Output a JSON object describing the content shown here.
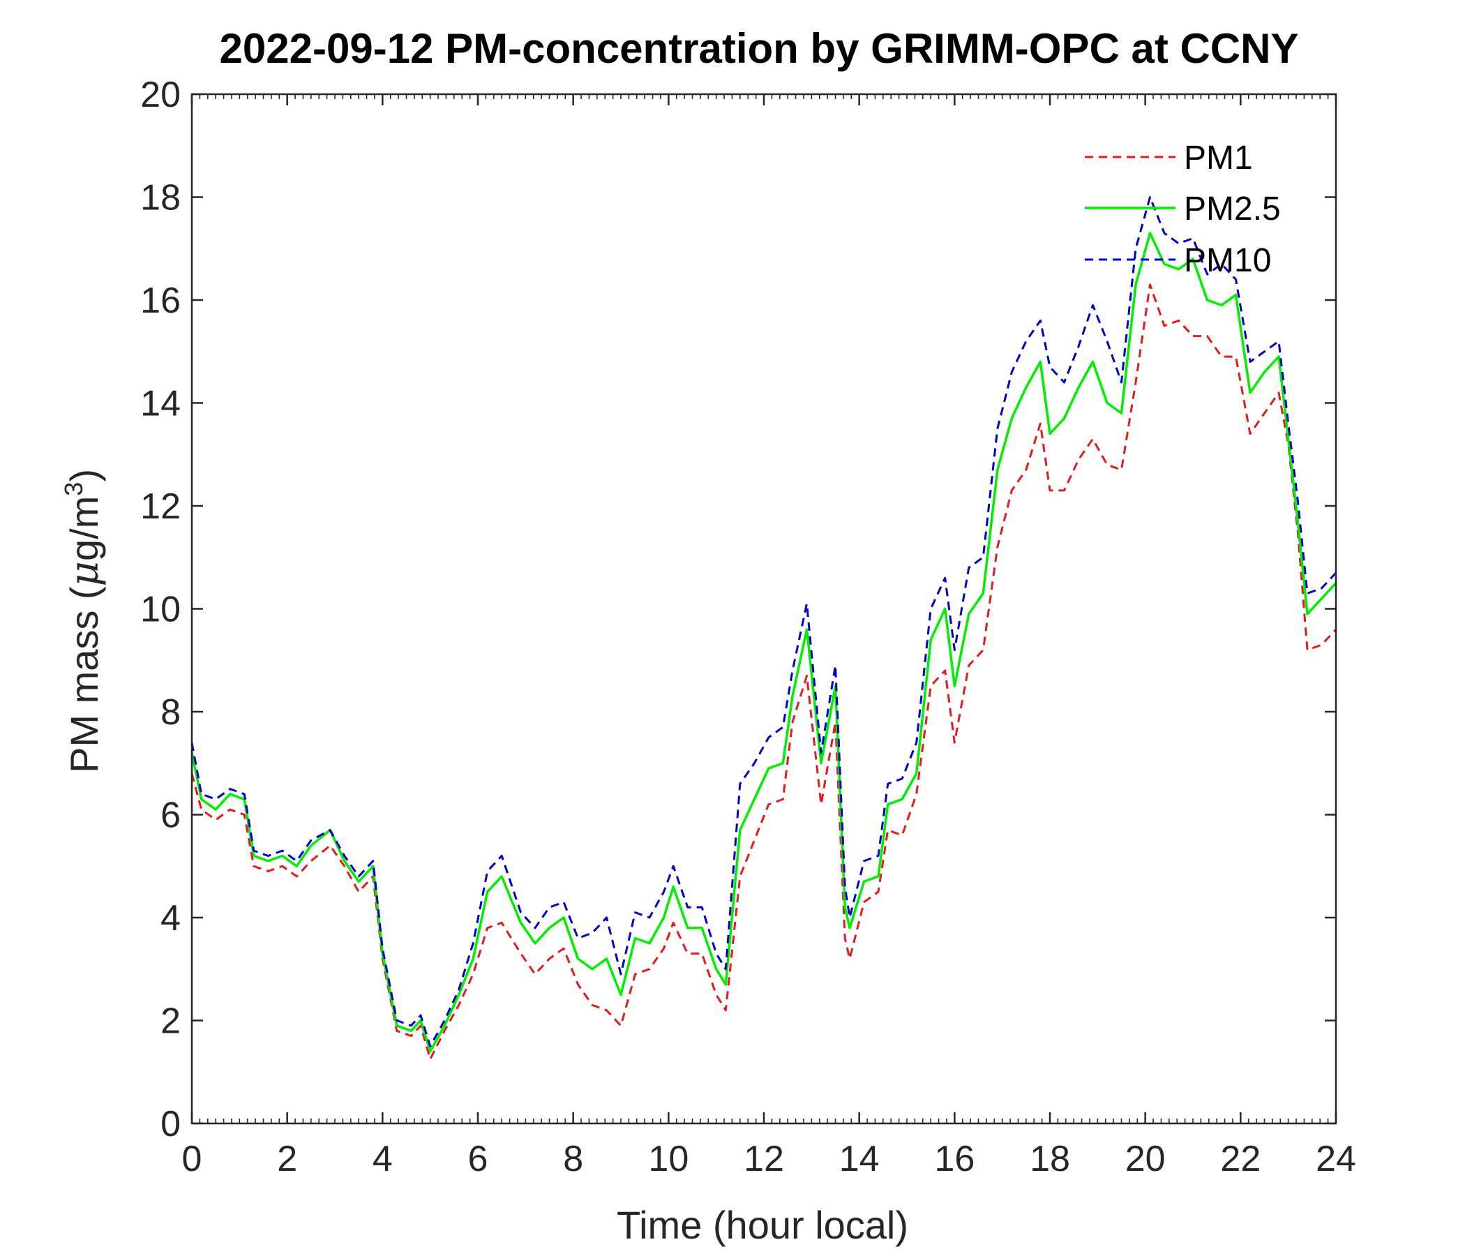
{
  "chart_data": {
    "type": "line",
    "title": "2022-09-12 PM-concentration by GRIMM-OPC at CCNY",
    "xlabel": "Time (hour local)",
    "ylabel_main": "PM mass (",
    "ylabel_mu": "μ",
    "ylabel_unit": "g/m",
    "ylabel_sup": "3",
    "ylabel_close": ")",
    "xlim": [
      0,
      24
    ],
    "ylim": [
      0,
      20
    ],
    "xticks": [
      0,
      2,
      4,
      6,
      8,
      10,
      12,
      14,
      16,
      18,
      20,
      22,
      24
    ],
    "yticks": [
      0,
      2,
      4,
      6,
      8,
      10,
      12,
      14,
      16,
      18,
      20
    ],
    "xtick_labels": [
      "0",
      "2",
      "4",
      "6",
      "8",
      "10",
      "12",
      "14",
      "16",
      "18",
      "20",
      "22",
      "24"
    ],
    "ytick_labels": [
      "0",
      "2",
      "4",
      "6",
      "8",
      "10",
      "12",
      "14",
      "16",
      "18",
      "20"
    ],
    "grid": false,
    "legend_position": "top-right",
    "x": [
      0,
      0.2,
      0.5,
      0.8,
      1.1,
      1.3,
      1.6,
      1.9,
      2.2,
      2.5,
      2.9,
      3.2,
      3.5,
      3.8,
      4.0,
      4.3,
      4.6,
      4.8,
      5.0,
      5.3,
      5.6,
      5.9,
      6.2,
      6.5,
      6.9,
      7.2,
      7.5,
      7.8,
      8.1,
      8.4,
      8.7,
      9.0,
      9.3,
      9.6,
      9.9,
      10.1,
      10.4,
      10.7,
      11.0,
      11.2,
      11.5,
      11.8,
      12.1,
      12.4,
      12.6,
      12.9,
      13.2,
      13.5,
      13.7,
      13.8,
      14.1,
      14.4,
      14.6,
      14.9,
      15.2,
      15.5,
      15.8,
      16.0,
      16.3,
      16.6,
      16.9,
      17.2,
      17.5,
      17.8,
      18.0,
      18.3,
      18.6,
      18.9,
      19.2,
      19.5,
      19.8,
      20.1,
      20.4,
      20.7,
      21.0,
      21.3,
      21.6,
      21.9,
      22.2,
      22.5,
      22.8,
      23.0,
      23.2,
      23.4,
      23.7,
      24.0
    ],
    "series": [
      {
        "name": "PM1",
        "color": "#e41a1c",
        "style": "dashed",
        "values": [
          6.8,
          6.1,
          5.9,
          6.1,
          6.0,
          5.0,
          4.9,
          5.0,
          4.8,
          5.1,
          5.4,
          5.0,
          4.5,
          4.8,
          3.2,
          1.8,
          1.7,
          1.9,
          1.25,
          1.8,
          2.3,
          2.9,
          3.8,
          3.9,
          3.3,
          2.9,
          3.2,
          3.4,
          2.7,
          2.3,
          2.2,
          1.9,
          2.9,
          3.0,
          3.4,
          3.9,
          3.3,
          3.3,
          2.5,
          2.2,
          4.8,
          5.5,
          6.2,
          6.3,
          7.8,
          8.7,
          6.2,
          7.8,
          3.6,
          3.2,
          4.3,
          4.5,
          5.7,
          5.6,
          6.4,
          8.5,
          8.8,
          7.4,
          8.9,
          9.2,
          11.2,
          12.3,
          12.7,
          13.6,
          12.3,
          12.3,
          12.9,
          13.3,
          12.8,
          12.7,
          14.4,
          16.3,
          15.5,
          15.6,
          15.3,
          15.3,
          14.9,
          14.9,
          13.4,
          13.8,
          14.2,
          13.2,
          11.5,
          9.2,
          9.3,
          9.6
        ]
      },
      {
        "name": "PM2.5",
        "color": "#00ee00",
        "style": "solid",
        "values": [
          7.2,
          6.3,
          6.1,
          6.4,
          6.3,
          5.2,
          5.1,
          5.2,
          5.0,
          5.4,
          5.7,
          5.1,
          4.7,
          5.0,
          3.3,
          1.9,
          1.8,
          2.0,
          1.4,
          1.9,
          2.5,
          3.2,
          4.5,
          4.8,
          3.9,
          3.5,
          3.8,
          4.0,
          3.2,
          3.0,
          3.2,
          2.5,
          3.6,
          3.5,
          4.0,
          4.6,
          3.8,
          3.8,
          3.0,
          2.7,
          5.7,
          6.3,
          6.9,
          7.0,
          8.3,
          9.6,
          7.0,
          8.5,
          4.2,
          3.8,
          4.7,
          4.8,
          6.2,
          6.3,
          6.8,
          9.4,
          10.0,
          8.5,
          9.9,
          10.3,
          12.7,
          13.7,
          14.3,
          14.8,
          13.4,
          13.7,
          14.3,
          14.8,
          14.0,
          13.8,
          16.3,
          17.3,
          16.7,
          16.6,
          16.8,
          16.0,
          15.9,
          16.1,
          14.2,
          14.6,
          14.9,
          13.3,
          11.7,
          9.9,
          10.2,
          10.5
        ]
      },
      {
        "name": "PM10",
        "color": "#0000cd",
        "style": "dashed",
        "values": [
          7.4,
          6.4,
          6.3,
          6.5,
          6.4,
          5.3,
          5.2,
          5.3,
          5.1,
          5.5,
          5.7,
          5.2,
          4.8,
          5.1,
          3.4,
          2.0,
          1.9,
          2.1,
          1.5,
          2.0,
          2.6,
          3.5,
          4.9,
          5.2,
          4.1,
          3.8,
          4.2,
          4.3,
          3.6,
          3.7,
          4.0,
          2.9,
          4.1,
          4.0,
          4.5,
          5.0,
          4.2,
          4.2,
          3.3,
          3.0,
          6.6,
          7.0,
          7.5,
          7.7,
          8.8,
          10.1,
          7.2,
          8.9,
          4.6,
          4.0,
          5.1,
          5.2,
          6.6,
          6.7,
          7.4,
          10.0,
          10.6,
          9.2,
          10.8,
          11.0,
          13.5,
          14.6,
          15.2,
          15.6,
          14.7,
          14.4,
          15.1,
          15.9,
          15.2,
          14.4,
          17.0,
          18.0,
          17.3,
          17.1,
          17.2,
          16.5,
          16.7,
          16.4,
          14.8,
          15.0,
          15.2,
          13.6,
          12.1,
          10.3,
          10.4,
          10.7
        ]
      }
    ]
  }
}
